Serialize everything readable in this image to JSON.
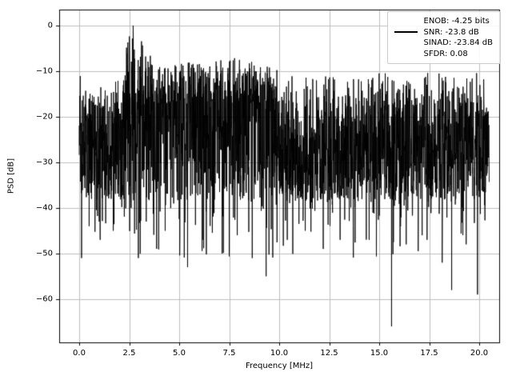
{
  "chart_data": {
    "type": "line",
    "title": "",
    "xlabel": "Frequency [MHz]",
    "ylabel": "PSD [dB]",
    "xlim": [
      -1,
      21
    ],
    "ylim": [
      -69.5,
      3.5
    ],
    "xticks": [
      "0.0",
      "2.5",
      "5.0",
      "7.5",
      "10.0",
      "12.5",
      "15.0",
      "17.5",
      "20.0"
    ],
    "yticks": [
      "0",
      "−10",
      "−20",
      "−30",
      "−40",
      "−50",
      "−60"
    ],
    "grid": true,
    "grid_color": "#bdbdbd",
    "series_color": "#000000",
    "legend_position": "upper right",
    "legend": {
      "entries": [
        "ENOB: -4.25 bits",
        "SNR: -23.8 dB",
        "SINAD: -23.84 dB",
        "SFDR: 0.08"
      ]
    },
    "signal": {
      "description": "wideband noise floor PSD with spectral hump near 2.7 MHz reaching 0 dB",
      "x_range": [
        0,
        20.5
      ],
      "noise_band": [
        -38,
        -17
      ],
      "peak": {
        "x": 2.7,
        "y": 0
      },
      "top_envelope": [
        [
          0,
          -10
        ],
        [
          0.35,
          -13
        ],
        [
          1.9,
          -12
        ],
        [
          2.15,
          -9
        ],
        [
          2.45,
          -3
        ],
        [
          2.7,
          0
        ],
        [
          2.95,
          -2
        ],
        [
          3.3,
          -5
        ],
        [
          3.8,
          -8
        ],
        [
          4.5,
          -9
        ],
        [
          5.5,
          -8
        ],
        [
          6.5,
          -8
        ],
        [
          7.6,
          -7
        ],
        [
          8.8,
          -8
        ],
        [
          9.6,
          -9
        ],
        [
          10.5,
          -11
        ],
        [
          12,
          -11
        ],
        [
          13.5,
          -11
        ],
        [
          15,
          -10
        ],
        [
          16.5,
          -11
        ],
        [
          18,
          -10
        ],
        [
          19,
          -11
        ],
        [
          20,
          -10
        ],
        [
          20.5,
          -12
        ]
      ],
      "deep_spikes": [
        [
          0.12,
          -51
        ],
        [
          0.5,
          -44
        ],
        [
          1.05,
          -47
        ],
        [
          1.7,
          -45
        ],
        [
          2.6,
          -40
        ],
        [
          3.35,
          -43
        ],
        [
          4.3,
          -45
        ],
        [
          5.42,
          -53
        ],
        [
          6.2,
          -47
        ],
        [
          7.15,
          -50
        ],
        [
          7.9,
          -46
        ],
        [
          8.65,
          -51
        ],
        [
          9.35,
          -55
        ],
        [
          10.4,
          -47
        ],
        [
          11.3,
          -45
        ],
        [
          12.2,
          -49
        ],
        [
          13.05,
          -47
        ],
        [
          13.7,
          -44
        ],
        [
          14.5,
          -47
        ],
        [
          15.62,
          -66
        ],
        [
          16.35,
          -48
        ],
        [
          17.15,
          -46
        ],
        [
          18.15,
          -52
        ],
        [
          18.62,
          -58
        ],
        [
          19.35,
          -48
        ],
        [
          19.92,
          -59
        ]
      ]
    }
  }
}
